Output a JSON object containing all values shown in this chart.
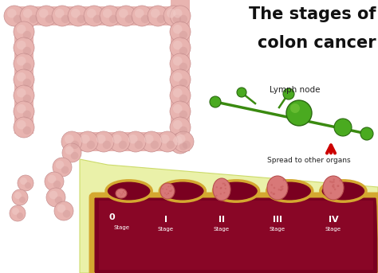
{
  "title_line1": "The stages of",
  "title_line2": "colon cancer",
  "title_color": "#111111",
  "title_fontsize": 15,
  "bg_color": "#ffffff",
  "lymph_label": "Lymph node",
  "spread_label": "Spread to other organs",
  "stages": [
    "0",
    "I",
    "II",
    "III",
    "IV"
  ],
  "stage_label": "Stage",
  "colon_fill": "#e8b4b0",
  "colon_shadow": "#c89090",
  "colon_highlight": "#f0ccc8",
  "intestine_dark": "#7a0020",
  "intestine_mid": "#a01030",
  "intestine_lining": "#d4a830",
  "polyp_fill": "#d87878",
  "polyp_texture": "#c86060",
  "green_stem": "#3a8a10",
  "green_node_fill": "#4aaa20",
  "arrow_color": "#cc0000",
  "zoom_fill": "#e8f0a0",
  "zoom_edge": "#c8d860"
}
